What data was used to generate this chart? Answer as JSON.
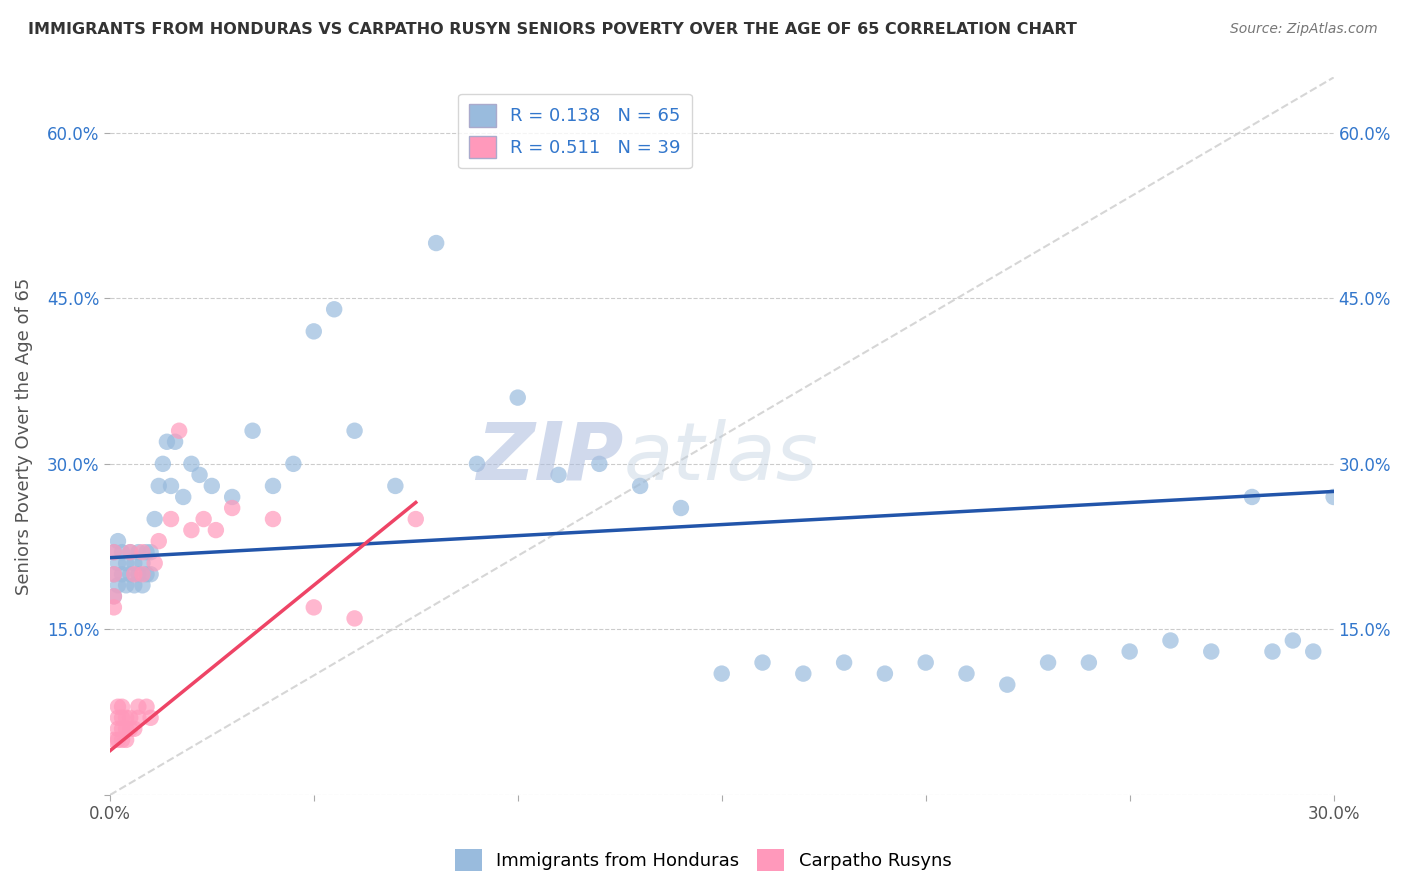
{
  "title": "IMMIGRANTS FROM HONDURAS VS CARPATHO RUSYN SENIORS POVERTY OVER THE AGE OF 65 CORRELATION CHART",
  "source": "Source: ZipAtlas.com",
  "ylabel": "Seniors Poverty Over the Age of 65",
  "xlim": [
    0.0,
    0.3
  ],
  "ylim": [
    0.0,
    0.65
  ],
  "x_ticks": [
    0.0,
    0.05,
    0.1,
    0.15,
    0.2,
    0.25,
    0.3
  ],
  "y_ticks": [
    0.0,
    0.15,
    0.3,
    0.45,
    0.6
  ],
  "legend_r1": "R = 0.138",
  "legend_n1": "N = 65",
  "legend_r2": "R = 0.511",
  "legend_n2": "N = 39",
  "blue_color": "#99BBDD",
  "pink_color": "#FF99BB",
  "blue_line_color": "#2255AA",
  "pink_line_color": "#EE4466",
  "label1": "Immigrants from Honduras",
  "label2": "Carpatho Rusyns",
  "blue_x": [
    0.001,
    0.001,
    0.001,
    0.002,
    0.002,
    0.002,
    0.003,
    0.003,
    0.004,
    0.004,
    0.005,
    0.005,
    0.006,
    0.006,
    0.007,
    0.007,
    0.008,
    0.008,
    0.009,
    0.009,
    0.01,
    0.01,
    0.011,
    0.012,
    0.013,
    0.014,
    0.015,
    0.016,
    0.018,
    0.02,
    0.022,
    0.025,
    0.03,
    0.035,
    0.04,
    0.045,
    0.05,
    0.055,
    0.06,
    0.07,
    0.08,
    0.09,
    0.1,
    0.11,
    0.12,
    0.13,
    0.14,
    0.15,
    0.16,
    0.17,
    0.18,
    0.19,
    0.2,
    0.21,
    0.22,
    0.23,
    0.24,
    0.25,
    0.26,
    0.27,
    0.28,
    0.285,
    0.29,
    0.295,
    0.3
  ],
  "blue_y": [
    0.2,
    0.22,
    0.18,
    0.19,
    0.21,
    0.23,
    0.2,
    0.22,
    0.19,
    0.21,
    0.2,
    0.22,
    0.19,
    0.21,
    0.2,
    0.22,
    0.19,
    0.21,
    0.2,
    0.22,
    0.2,
    0.22,
    0.25,
    0.28,
    0.3,
    0.32,
    0.28,
    0.32,
    0.27,
    0.3,
    0.29,
    0.28,
    0.27,
    0.33,
    0.28,
    0.3,
    0.42,
    0.44,
    0.33,
    0.28,
    0.5,
    0.3,
    0.36,
    0.29,
    0.3,
    0.28,
    0.26,
    0.11,
    0.12,
    0.11,
    0.12,
    0.11,
    0.12,
    0.11,
    0.1,
    0.12,
    0.12,
    0.13,
    0.14,
    0.13,
    0.27,
    0.13,
    0.14,
    0.13,
    0.27
  ],
  "pink_x": [
    0.001,
    0.001,
    0.001,
    0.001,
    0.001,
    0.002,
    0.002,
    0.002,
    0.002,
    0.003,
    0.003,
    0.003,
    0.003,
    0.004,
    0.004,
    0.004,
    0.005,
    0.005,
    0.005,
    0.006,
    0.006,
    0.007,
    0.007,
    0.008,
    0.008,
    0.009,
    0.01,
    0.011,
    0.012,
    0.015,
    0.017,
    0.02,
    0.023,
    0.026,
    0.03,
    0.04,
    0.05,
    0.06,
    0.075
  ],
  "pink_y": [
    0.22,
    0.2,
    0.18,
    0.17,
    0.05,
    0.08,
    0.07,
    0.06,
    0.05,
    0.08,
    0.07,
    0.06,
    0.05,
    0.07,
    0.06,
    0.05,
    0.07,
    0.06,
    0.22,
    0.2,
    0.06,
    0.08,
    0.07,
    0.2,
    0.22,
    0.08,
    0.07,
    0.21,
    0.23,
    0.25,
    0.33,
    0.24,
    0.25,
    0.24,
    0.26,
    0.25,
    0.17,
    0.16,
    0.25
  ],
  "blue_line_x0": 0.0,
  "blue_line_y0": 0.215,
  "blue_line_x1": 0.3,
  "blue_line_y1": 0.275,
  "pink_line_x0": 0.0,
  "pink_line_y0": 0.04,
  "pink_line_x1": 0.075,
  "pink_line_y1": 0.265,
  "ref_line_x0": 0.0,
  "ref_line_y0": 0.0,
  "ref_line_x1": 0.3,
  "ref_line_y1": 0.65
}
